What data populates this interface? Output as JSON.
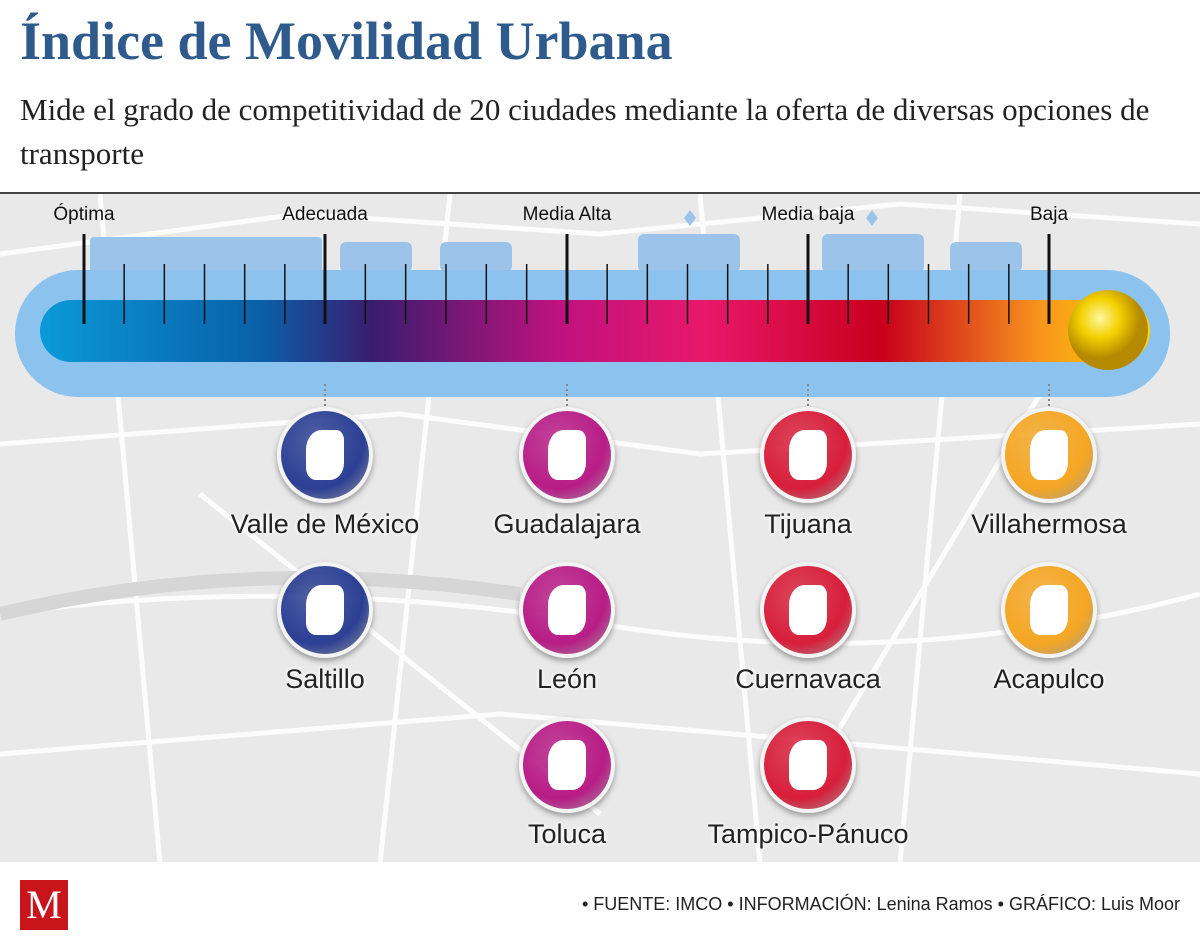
{
  "title": "Índice de Movilidad Urbana",
  "subtitle": "Mide el grado de competitividad de 20 ciudades mediante la oferta de diversas opciones de transporte",
  "levels": [
    "Óptima",
    "Adecuada",
    "Media Alta",
    "Media baja",
    "Baja"
  ],
  "colors": {
    "title": "#2f5a8c",
    "adecuada": "#2b3f94",
    "media_alta": "#b81c86",
    "media_baja": "#d81e3a",
    "baja": "#f5a623",
    "logo": "#c8141b"
  },
  "cities": {
    "adecuada": [
      "Valle de México",
      "Saltillo"
    ],
    "media_alta": [
      "Guadalajara",
      "León",
      "Toluca"
    ],
    "media_baja": [
      "Tijuana",
      "Cuernavaca",
      "Tampico-Pánuco"
    ],
    "baja": [
      "Villahermosa",
      "Acapulco"
    ]
  },
  "footer": {
    "logo": "M",
    "credits": "• FUENTE: IMCO • INFORMACIÓN: Lenina Ramos • GRÁFICO: Luis Moor"
  }
}
